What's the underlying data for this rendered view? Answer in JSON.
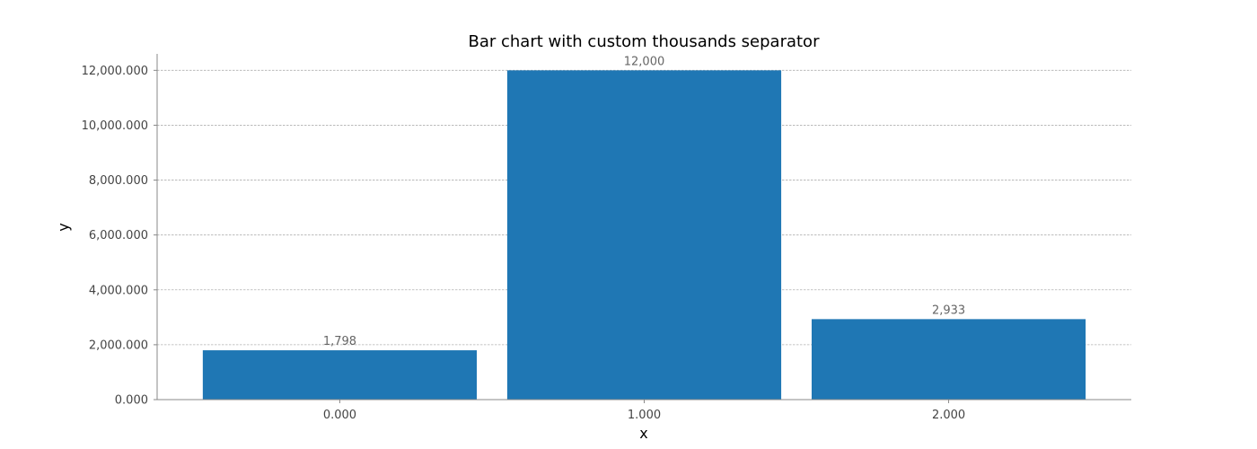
{
  "chart_data": {
    "type": "bar",
    "title": "Bar chart with custom thousands separator",
    "xlabel": "x",
    "ylabel": "y",
    "categories": [
      0,
      1,
      2
    ],
    "x_tick_labels": [
      "0.000",
      "1.000",
      "2.000"
    ],
    "values": [
      1798,
      12000,
      2933
    ],
    "data_labels": [
      "1,798",
      "12,000",
      "2,933"
    ],
    "y_ticks": [
      0,
      2000,
      4000,
      6000,
      8000,
      10000,
      12000
    ],
    "y_tick_labels": [
      "0.000",
      "2,000.000",
      "4,000.000",
      "6,000.000",
      "8,000.000",
      "10,000.000",
      "12,000.000"
    ],
    "ylim": [
      0,
      12600
    ],
    "xlim": [
      -0.6,
      2.6
    ],
    "bar_width": 0.9,
    "grid": "y-major dashed",
    "legend": "none",
    "colors": {
      "bar": "#1f77b4"
    }
  }
}
